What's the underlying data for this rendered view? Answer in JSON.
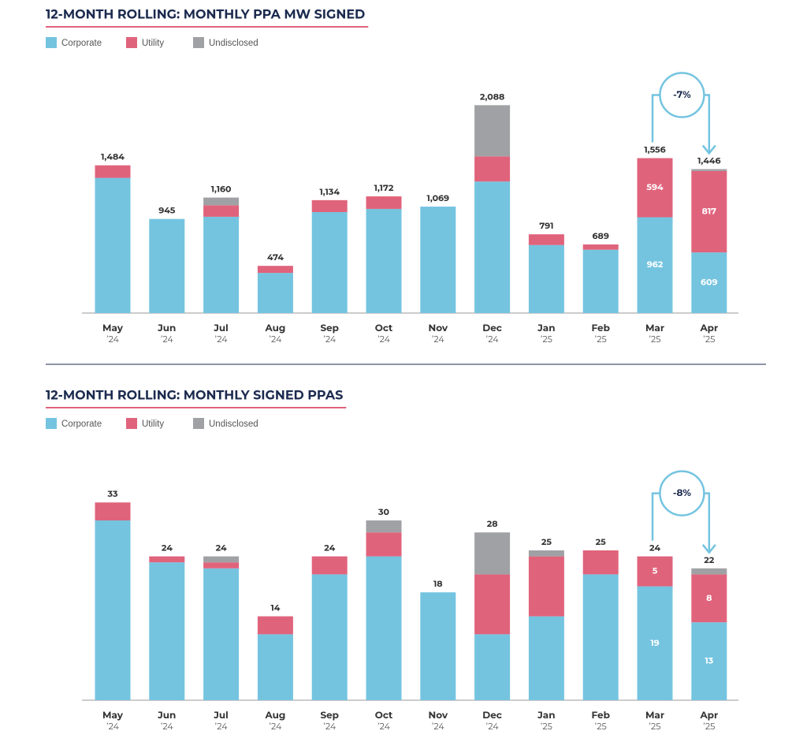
{
  "chart_data": [
    {
      "type": "stacked_bar",
      "title": "12-MONTH ROLLING: MONTHLY PPA MW SIGNED",
      "categories": [
        "May",
        "Jun",
        "Jul",
        "Aug",
        "Sep",
        "Oct",
        "Nov",
        "Dec",
        "Jan",
        "Feb",
        "Mar",
        "Apr"
      ],
      "years": [
        "’24",
        "’24",
        "’24",
        "’24",
        "’24",
        "’24",
        "’24",
        "’24",
        "’25",
        "’25",
        "’25",
        "’25"
      ],
      "series": [
        {
          "name": "Corporate",
          "color": "#74c4e0",
          "values": [
            1358,
            945,
            967,
            403,
            1014,
            1046,
            1069,
            1321,
            683,
            636,
            962,
            609
          ],
          "value_labels": [
            null,
            null,
            null,
            null,
            null,
            null,
            null,
            null,
            null,
            null,
            "962",
            "609"
          ]
        },
        {
          "name": "Utility",
          "color": "#e0637c",
          "values": [
            126,
            0,
            116,
            71,
            120,
            126,
            0,
            253,
            108,
            53,
            594,
            817
          ],
          "value_labels": [
            null,
            null,
            null,
            null,
            null,
            null,
            null,
            null,
            null,
            null,
            "594",
            "817"
          ]
        },
        {
          "name": "Undisclosed",
          "color": "#a0a1a4",
          "values": [
            0,
            0,
            77,
            0,
            0,
            0,
            0,
            514,
            0,
            0,
            0,
            20
          ],
          "value_labels": [
            null,
            null,
            null,
            null,
            null,
            null,
            null,
            null,
            null,
            null,
            null,
            null
          ]
        }
      ],
      "totals": [
        1484,
        945,
        1160,
        474,
        1134,
        1172,
        1069,
        2088,
        791,
        689,
        1556,
        1446
      ],
      "total_labels": [
        "1,484",
        "945",
        "1,160",
        "474",
        "1,134",
        "1,172",
        "1,069",
        "2,088",
        "791",
        "689",
        "1,556",
        "1,446"
      ],
      "ylim": [
        0,
        2400
      ],
      "annotation": "-7%"
    },
    {
      "type": "stacked_bar",
      "title": "12-MONTH ROLLING: MONTHLY SIGNED PPAS",
      "categories": [
        "May",
        "Jun",
        "Jul",
        "Aug",
        "Sep",
        "Oct",
        "Nov",
        "Dec",
        "Jan",
        "Feb",
        "Mar",
        "Apr"
      ],
      "years": [
        "’24",
        "’24",
        "’24",
        "’24",
        "’24",
        "’24",
        "’24",
        "’24",
        "’25",
        "’25",
        "’25",
        "’25"
      ],
      "series": [
        {
          "name": "Corporate",
          "color": "#74c4e0",
          "values": [
            30,
            23,
            22,
            11,
            21,
            24,
            18,
            11,
            14,
            21,
            19,
            13
          ],
          "value_labels": [
            null,
            null,
            null,
            null,
            null,
            null,
            null,
            null,
            null,
            null,
            "19",
            "13"
          ]
        },
        {
          "name": "Utility",
          "color": "#e0637c",
          "values": [
            3,
            1,
            1,
            3,
            3,
            4,
            0,
            10,
            10,
            4,
            5,
            8
          ],
          "value_labels": [
            null,
            null,
            null,
            null,
            null,
            null,
            null,
            null,
            null,
            null,
            "5",
            "8"
          ]
        },
        {
          "name": "Undisclosed",
          "color": "#a0a1a4",
          "values": [
            0,
            0,
            1,
            0,
            0,
            2,
            0,
            7,
            1,
            0,
            0,
            1
          ],
          "value_labels": [
            null,
            null,
            null,
            null,
            null,
            null,
            null,
            null,
            null,
            null,
            null,
            null
          ]
        }
      ],
      "totals": [
        33,
        24,
        24,
        14,
        24,
        30,
        18,
        28,
        25,
        25,
        24,
        22
      ],
      "ylim": [
        0,
        35
      ],
      "annotation": "-8%"
    }
  ]
}
